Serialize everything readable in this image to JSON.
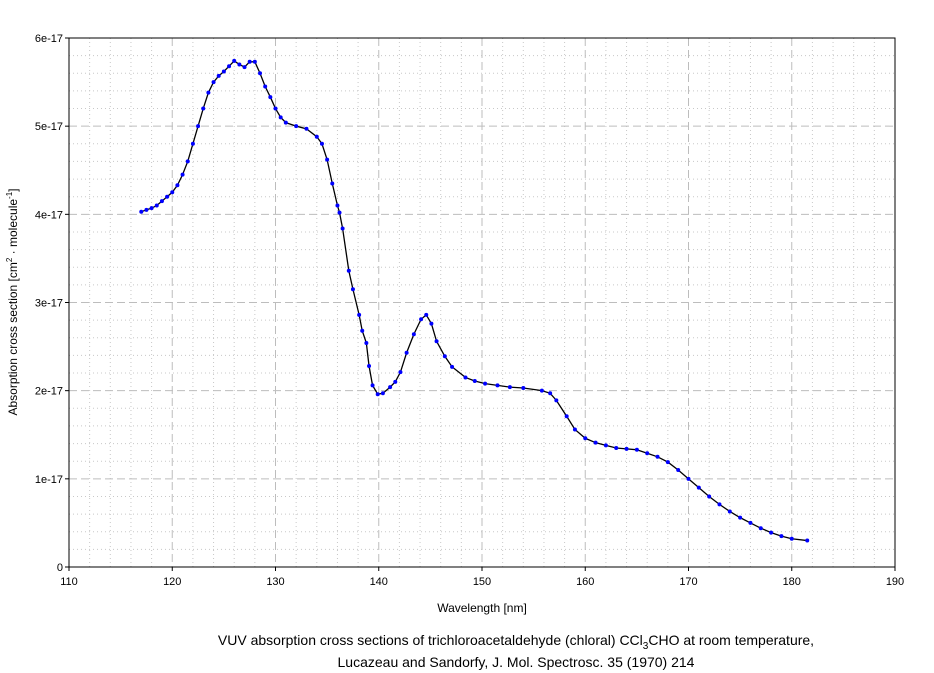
{
  "chart_data": {
    "type": "line",
    "title": "",
    "xlabel": "Wavelength [nm]",
    "ylabel_parts": [
      "Absorption cross section [cm",
      "2",
      " · molecule",
      "-1",
      "]"
    ],
    "xlim": [
      110,
      190
    ],
    "ylim": [
      0,
      6e-17
    ],
    "x_ticks": [
      110,
      120,
      130,
      140,
      150,
      160,
      170,
      180,
      190
    ],
    "x_tick_labels": [
      "110",
      "120",
      "130",
      "140",
      "150",
      "160",
      "170",
      "180",
      "190"
    ],
    "y_ticks": [
      0,
      1e-17,
      2e-17,
      3e-17,
      4e-17,
      5e-17,
      6e-17
    ],
    "y_tick_labels": [
      "0",
      "1e-17",
      "2e-17",
      "3e-17",
      "4e-17",
      "5e-17",
      "6e-17"
    ],
    "grid": true,
    "line_color": "#000000",
    "marker_color": "#0000ff",
    "y_unit": 1e-17,
    "series": [
      {
        "name": "CCl3CHO",
        "x": [
          117,
          117.5,
          118,
          118.5,
          119,
          119.5,
          120,
          120.5,
          121,
          121.5,
          122,
          122.5,
          123,
          123.5,
          124,
          124.5,
          125,
          125.5,
          126,
          126.5,
          127,
          127.5,
          128,
          128.5,
          129,
          129.5,
          130,
          130.5,
          131,
          132,
          133,
          134,
          134.5,
          135,
          135.5,
          136,
          136.2,
          136.5,
          137.1,
          137.5,
          138.1,
          138.4,
          138.8,
          139.06,
          139.4,
          139.9,
          140.4,
          141.1,
          141.6,
          142.1,
          142.7,
          143.4,
          144.1,
          144.6,
          145.1,
          145.6,
          146.4,
          147.1,
          148.4,
          149.3,
          150.3,
          151.5,
          152.7,
          154,
          155.8,
          156.6,
          157.2,
          158.2,
          159,
          160,
          161,
          162,
          163,
          164,
          165,
          166,
          167,
          168,
          169,
          170,
          171,
          172,
          173,
          174,
          175,
          176,
          177,
          178,
          179,
          180,
          181.5
        ],
        "y": [
          4.03,
          4.05,
          4.07,
          4.1,
          4.15,
          4.2,
          4.25,
          4.33,
          4.45,
          4.6,
          4.8,
          5.0,
          5.2,
          5.38,
          5.5,
          5.57,
          5.62,
          5.68,
          5.74,
          5.7,
          5.67,
          5.73,
          5.73,
          5.6,
          5.45,
          5.33,
          5.2,
          5.1,
          5.04,
          5.0,
          4.97,
          4.88,
          4.8,
          4.62,
          4.35,
          4.1,
          4.02,
          3.84,
          3.36,
          3.15,
          2.86,
          2.68,
          2.54,
          2.28,
          2.06,
          1.96,
          1.97,
          2.04,
          2.1,
          2.21,
          2.43,
          2.64,
          2.81,
          2.86,
          2.76,
          2.56,
          2.39,
          2.27,
          2.15,
          2.11,
          2.08,
          2.06,
          2.04,
          2.03,
          2.0,
          1.97,
          1.89,
          1.71,
          1.56,
          1.46,
          1.41,
          1.38,
          1.35,
          1.34,
          1.33,
          1.29,
          1.25,
          1.19,
          1.1,
          1.0,
          0.9,
          0.8,
          0.71,
          0.63,
          0.56,
          0.5,
          0.44,
          0.39,
          0.35,
          0.32,
          0.3
        ]
      }
    ]
  },
  "caption": {
    "line1_pre": "VUV absorption cross sections of trichloroacetaldehyde (chloral) CCl",
    "line1_sub": "3",
    "line1_post": "CHO at room temperature,",
    "line2": "Lucazeau and Sandorfy, J. Mol. Spectrosc. 35 (1970) 214"
  }
}
